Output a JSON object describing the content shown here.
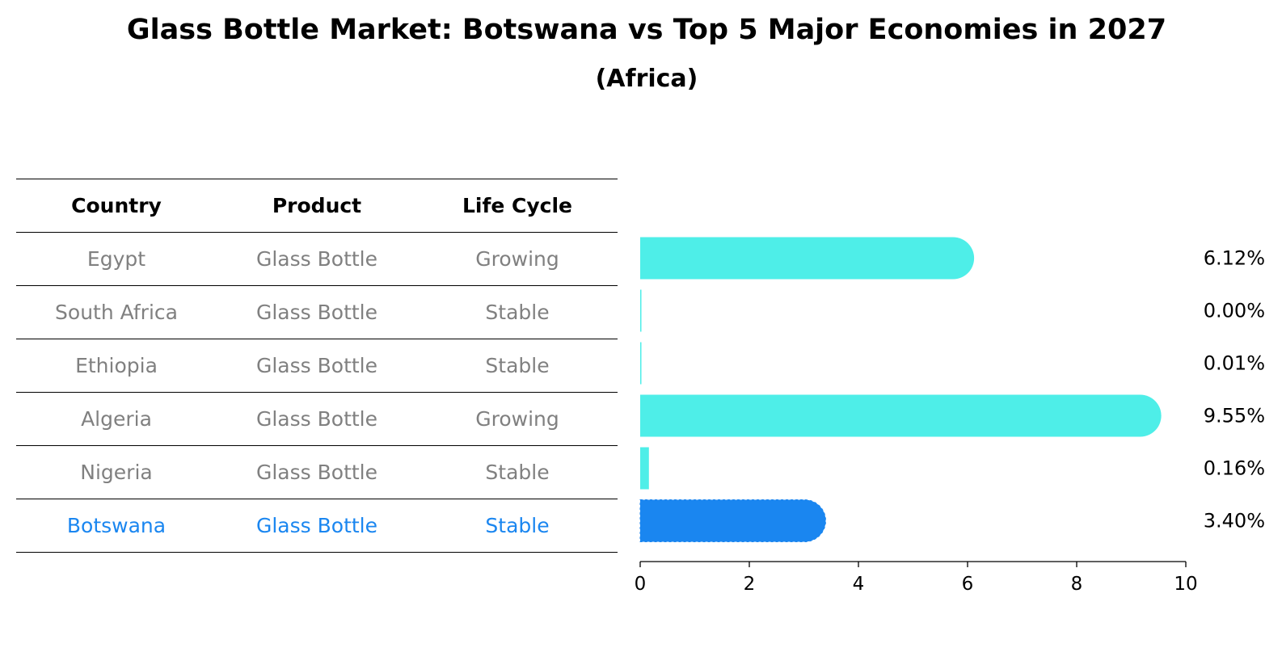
{
  "title": "Glass Bottle Market: Botswana vs Top 5 Major Economies in 2027",
  "subtitle": "(Africa)",
  "table": {
    "headers": [
      "Country",
      "Product",
      "Life Cycle"
    ],
    "rows": [
      {
        "country": "Egypt",
        "product": "Glass Bottle",
        "life_cycle": "Growing"
      },
      {
        "country": "South Africa",
        "product": "Glass Bottle",
        "life_cycle": "Stable"
      },
      {
        "country": "Ethiopia",
        "product": "Glass Bottle",
        "life_cycle": "Stable"
      },
      {
        "country": "Algeria",
        "product": "Glass Bottle",
        "life_cycle": "Growing"
      },
      {
        "country": "Nigeria",
        "product": "Glass Bottle",
        "life_cycle": "Stable"
      },
      {
        "country": "Botswana",
        "product": "Glass Bottle",
        "life_cycle": "Stable"
      }
    ],
    "highlight_row": "Botswana"
  },
  "chart_data": {
    "type": "bar",
    "orientation": "horizontal",
    "categories": [
      "Egypt",
      "South Africa",
      "Ethiopia",
      "Algeria",
      "Nigeria",
      "Botswana"
    ],
    "values": [
      6.12,
      0.0,
      0.01,
      9.55,
      0.16,
      3.4
    ],
    "value_labels": [
      "6.12%",
      "0.00%",
      "0.01%",
      "9.55%",
      "0.16%",
      "3.40%"
    ],
    "xlim": [
      0,
      10
    ],
    "xticks": [
      0,
      2,
      4,
      6,
      8,
      10
    ],
    "grid": false,
    "colors": {
      "default": "#4eeee8",
      "highlight": "#1a86f0",
      "table_text": "#808080",
      "table_highlight_text": "#1a86f0"
    },
    "highlight": "Botswana"
  }
}
